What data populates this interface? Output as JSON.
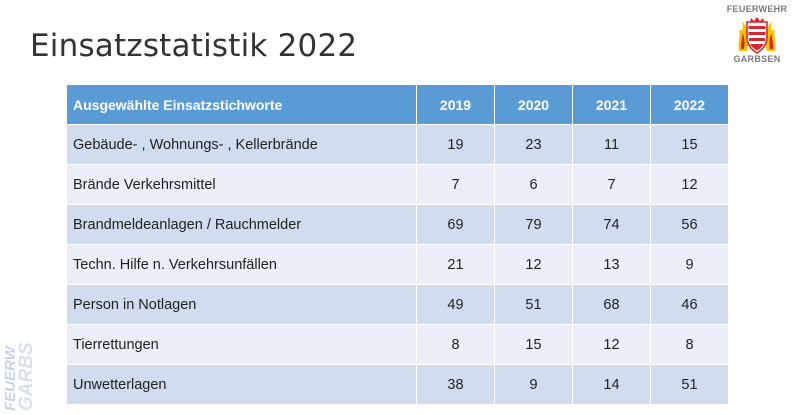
{
  "title": "Einsatzstatistik 2022",
  "logo": {
    "top_text": "FEUERWEHR",
    "bottom_text": "GARBSEN"
  },
  "watermark": {
    "line1": "FEUERW",
    "line2": "GARBS"
  },
  "table": {
    "header": {
      "label": "Ausgewählte Einsatzstichworte",
      "years": [
        "2019",
        "2020",
        "2021",
        "2022"
      ]
    },
    "rows": [
      {
        "label": "Gebäude- , Wohnungs- , Kellerbrände",
        "values": [
          "19",
          "23",
          "11",
          "15"
        ]
      },
      {
        "label": "Brände Verkehrsmittel",
        "values": [
          "7",
          "6",
          "7",
          "12"
        ]
      },
      {
        "label": "Brandmeldeanlagen / Rauchmelder",
        "values": [
          "69",
          "79",
          "74",
          "56"
        ]
      },
      {
        "label": "Techn. Hilfe n. Verkehrsunfällen",
        "values": [
          "21",
          "12",
          "13",
          "9"
        ]
      },
      {
        "label": "Person in Notlagen",
        "values": [
          "49",
          "51",
          "68",
          "46"
        ]
      },
      {
        "label": "Tierrettungen",
        "values": [
          "8",
          "15",
          "12",
          "8"
        ]
      },
      {
        "label": "Unwetterlagen",
        "values": [
          "38",
          "9",
          "14",
          "51"
        ]
      }
    ]
  },
  "colors": {
    "header_bg": "#5b9bd5",
    "row_odd": "#d1dcee",
    "row_even": "#e9eef7",
    "logo_red": "#d7282f",
    "logo_yellow": "#f2c300"
  }
}
